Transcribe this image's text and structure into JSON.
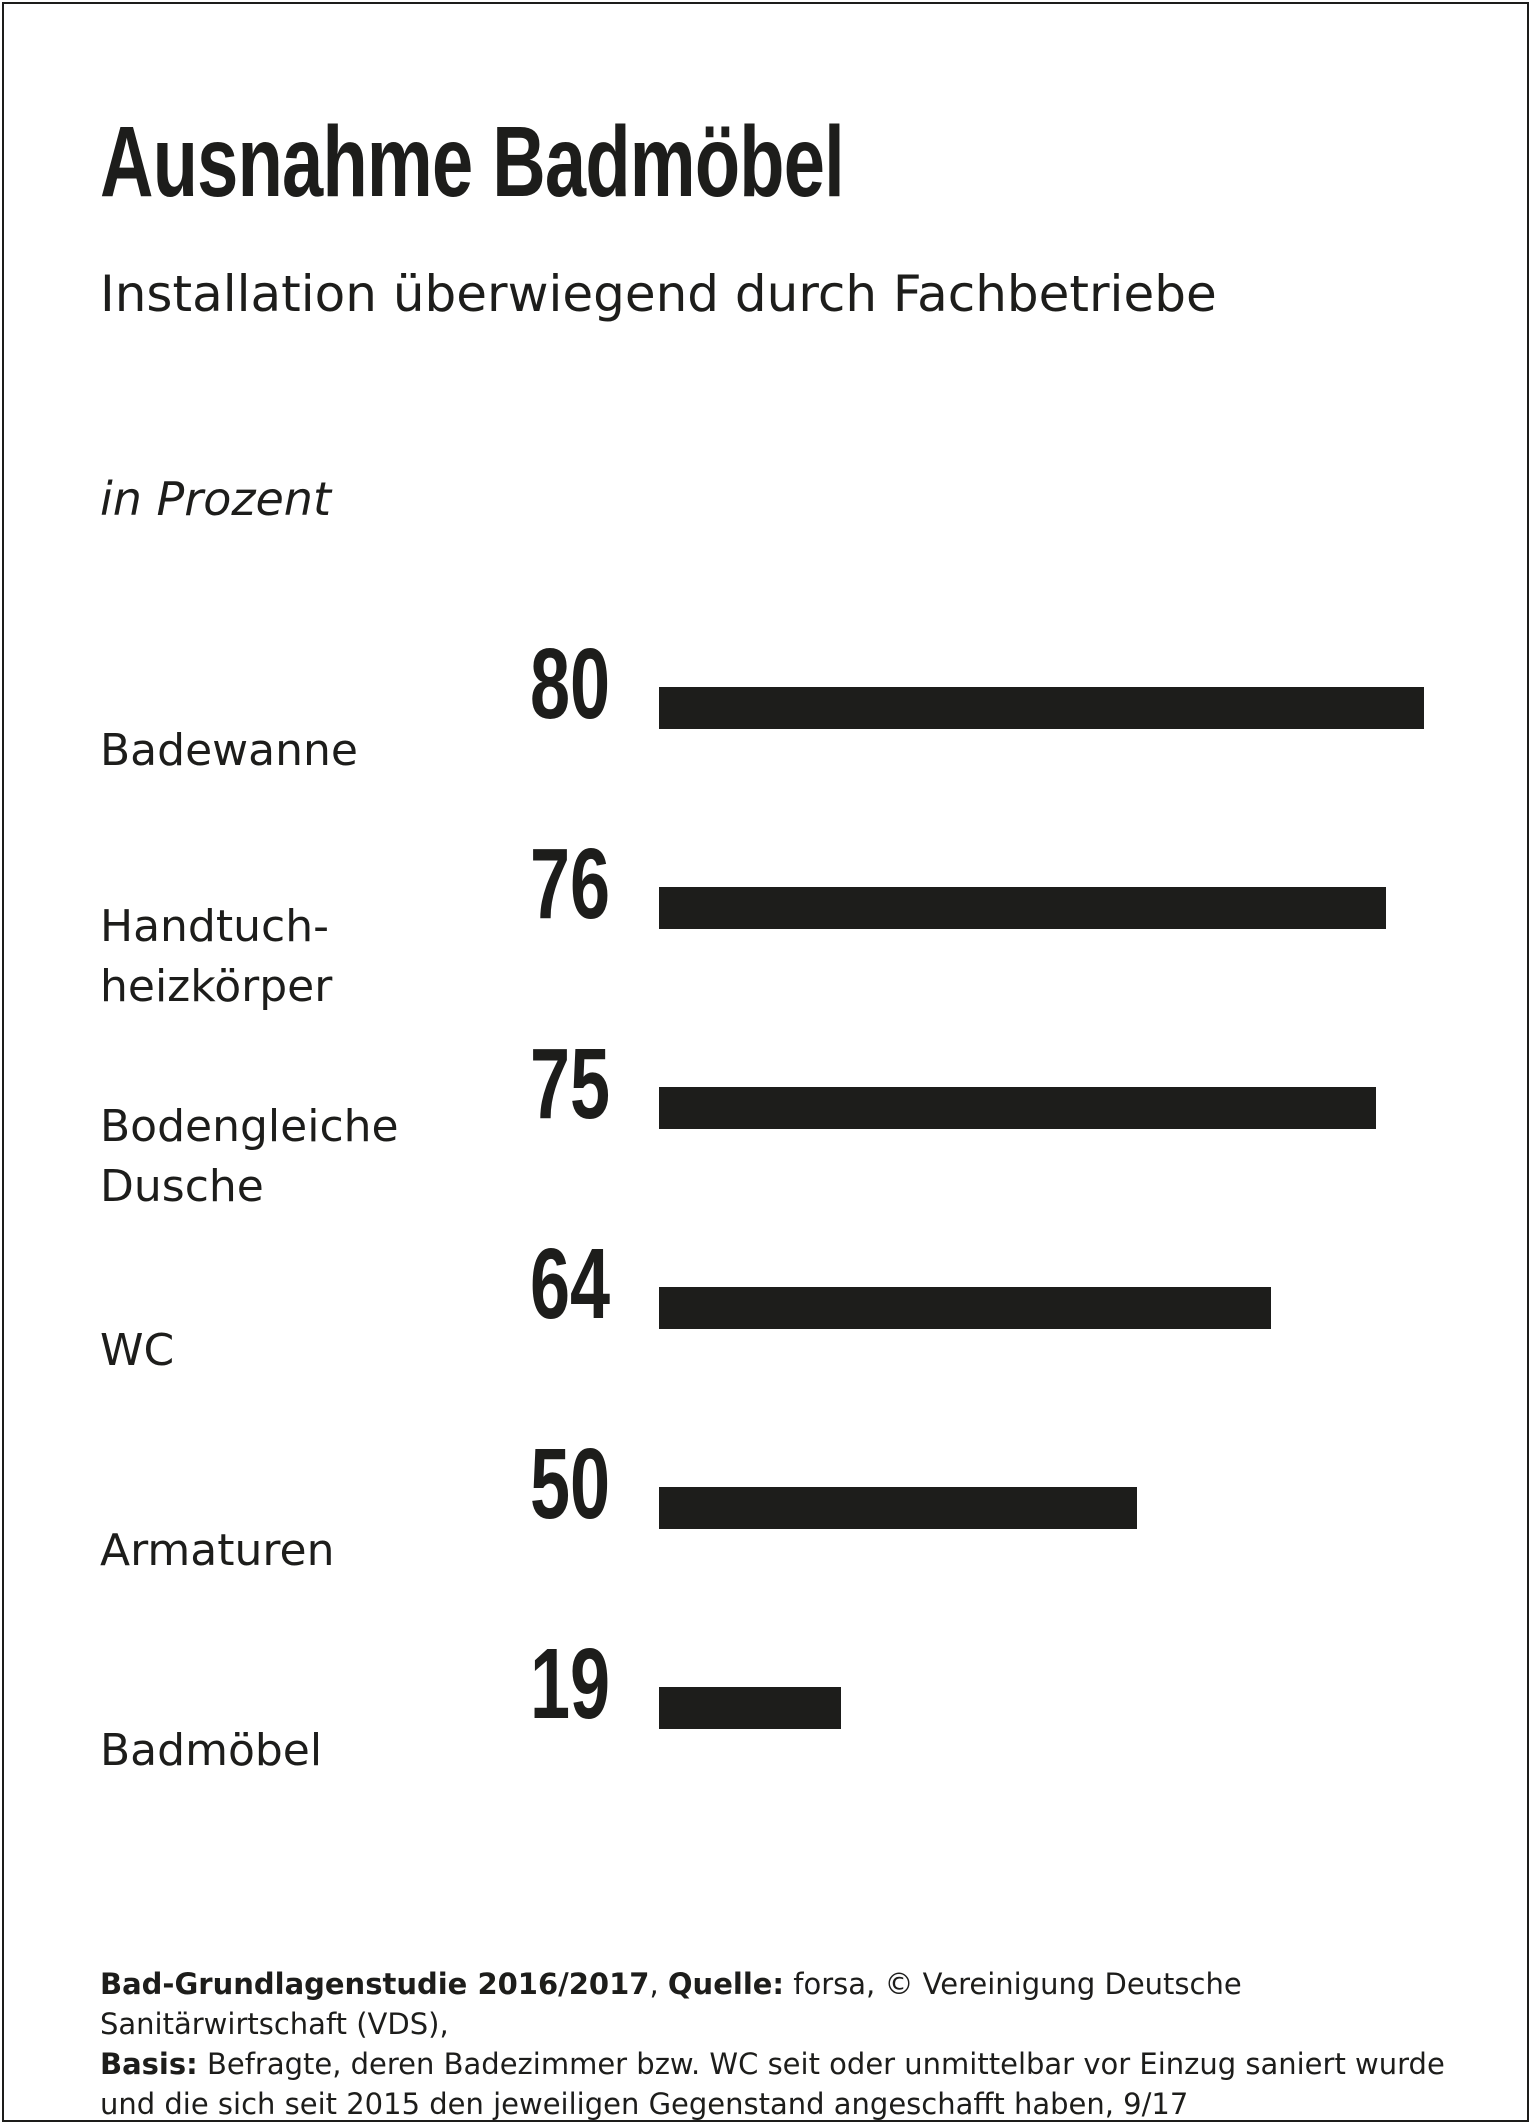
{
  "title": "Ausnahme Badmöbel",
  "subtitle": "Installation überwiegend durch Fachbetriebe",
  "unit_label": "in Prozent",
  "chart_data": {
    "type": "bar",
    "orientation": "horizontal",
    "categories": [
      "Badewanne",
      "Handtuch-\nheizkörper",
      "Bodengleiche\nDusche",
      "WC",
      "Armaturen",
      "Badmöbel"
    ],
    "values": [
      80,
      76,
      75,
      64,
      50,
      19
    ],
    "value_labels": [
      "80",
      "76",
      "75",
      "64",
      "50",
      "19"
    ],
    "title": "Ausnahme Badmöbel",
    "ylabel": "in Prozent",
    "xlim": [
      0,
      100
    ],
    "grid": false,
    "bar_color": "#1d1d1b"
  },
  "footnote": {
    "study_bold": "Bad-Grundlagenstudie 2016/2017",
    "sep1": ", ",
    "source_label_bold": "Quelle:",
    "source_text": " forsa, © Vereinigung Deutsche Sanitärwirtschaft (VDS),",
    "basis_label_bold": "Basis:",
    "basis_text": " Befragte, deren Badezimmer bzw. WC seit oder unmittelbar vor Einzug saniert wurde und die sich seit 2015 den jeweiligen Gegenstand angeschafft haben, 9/17"
  }
}
